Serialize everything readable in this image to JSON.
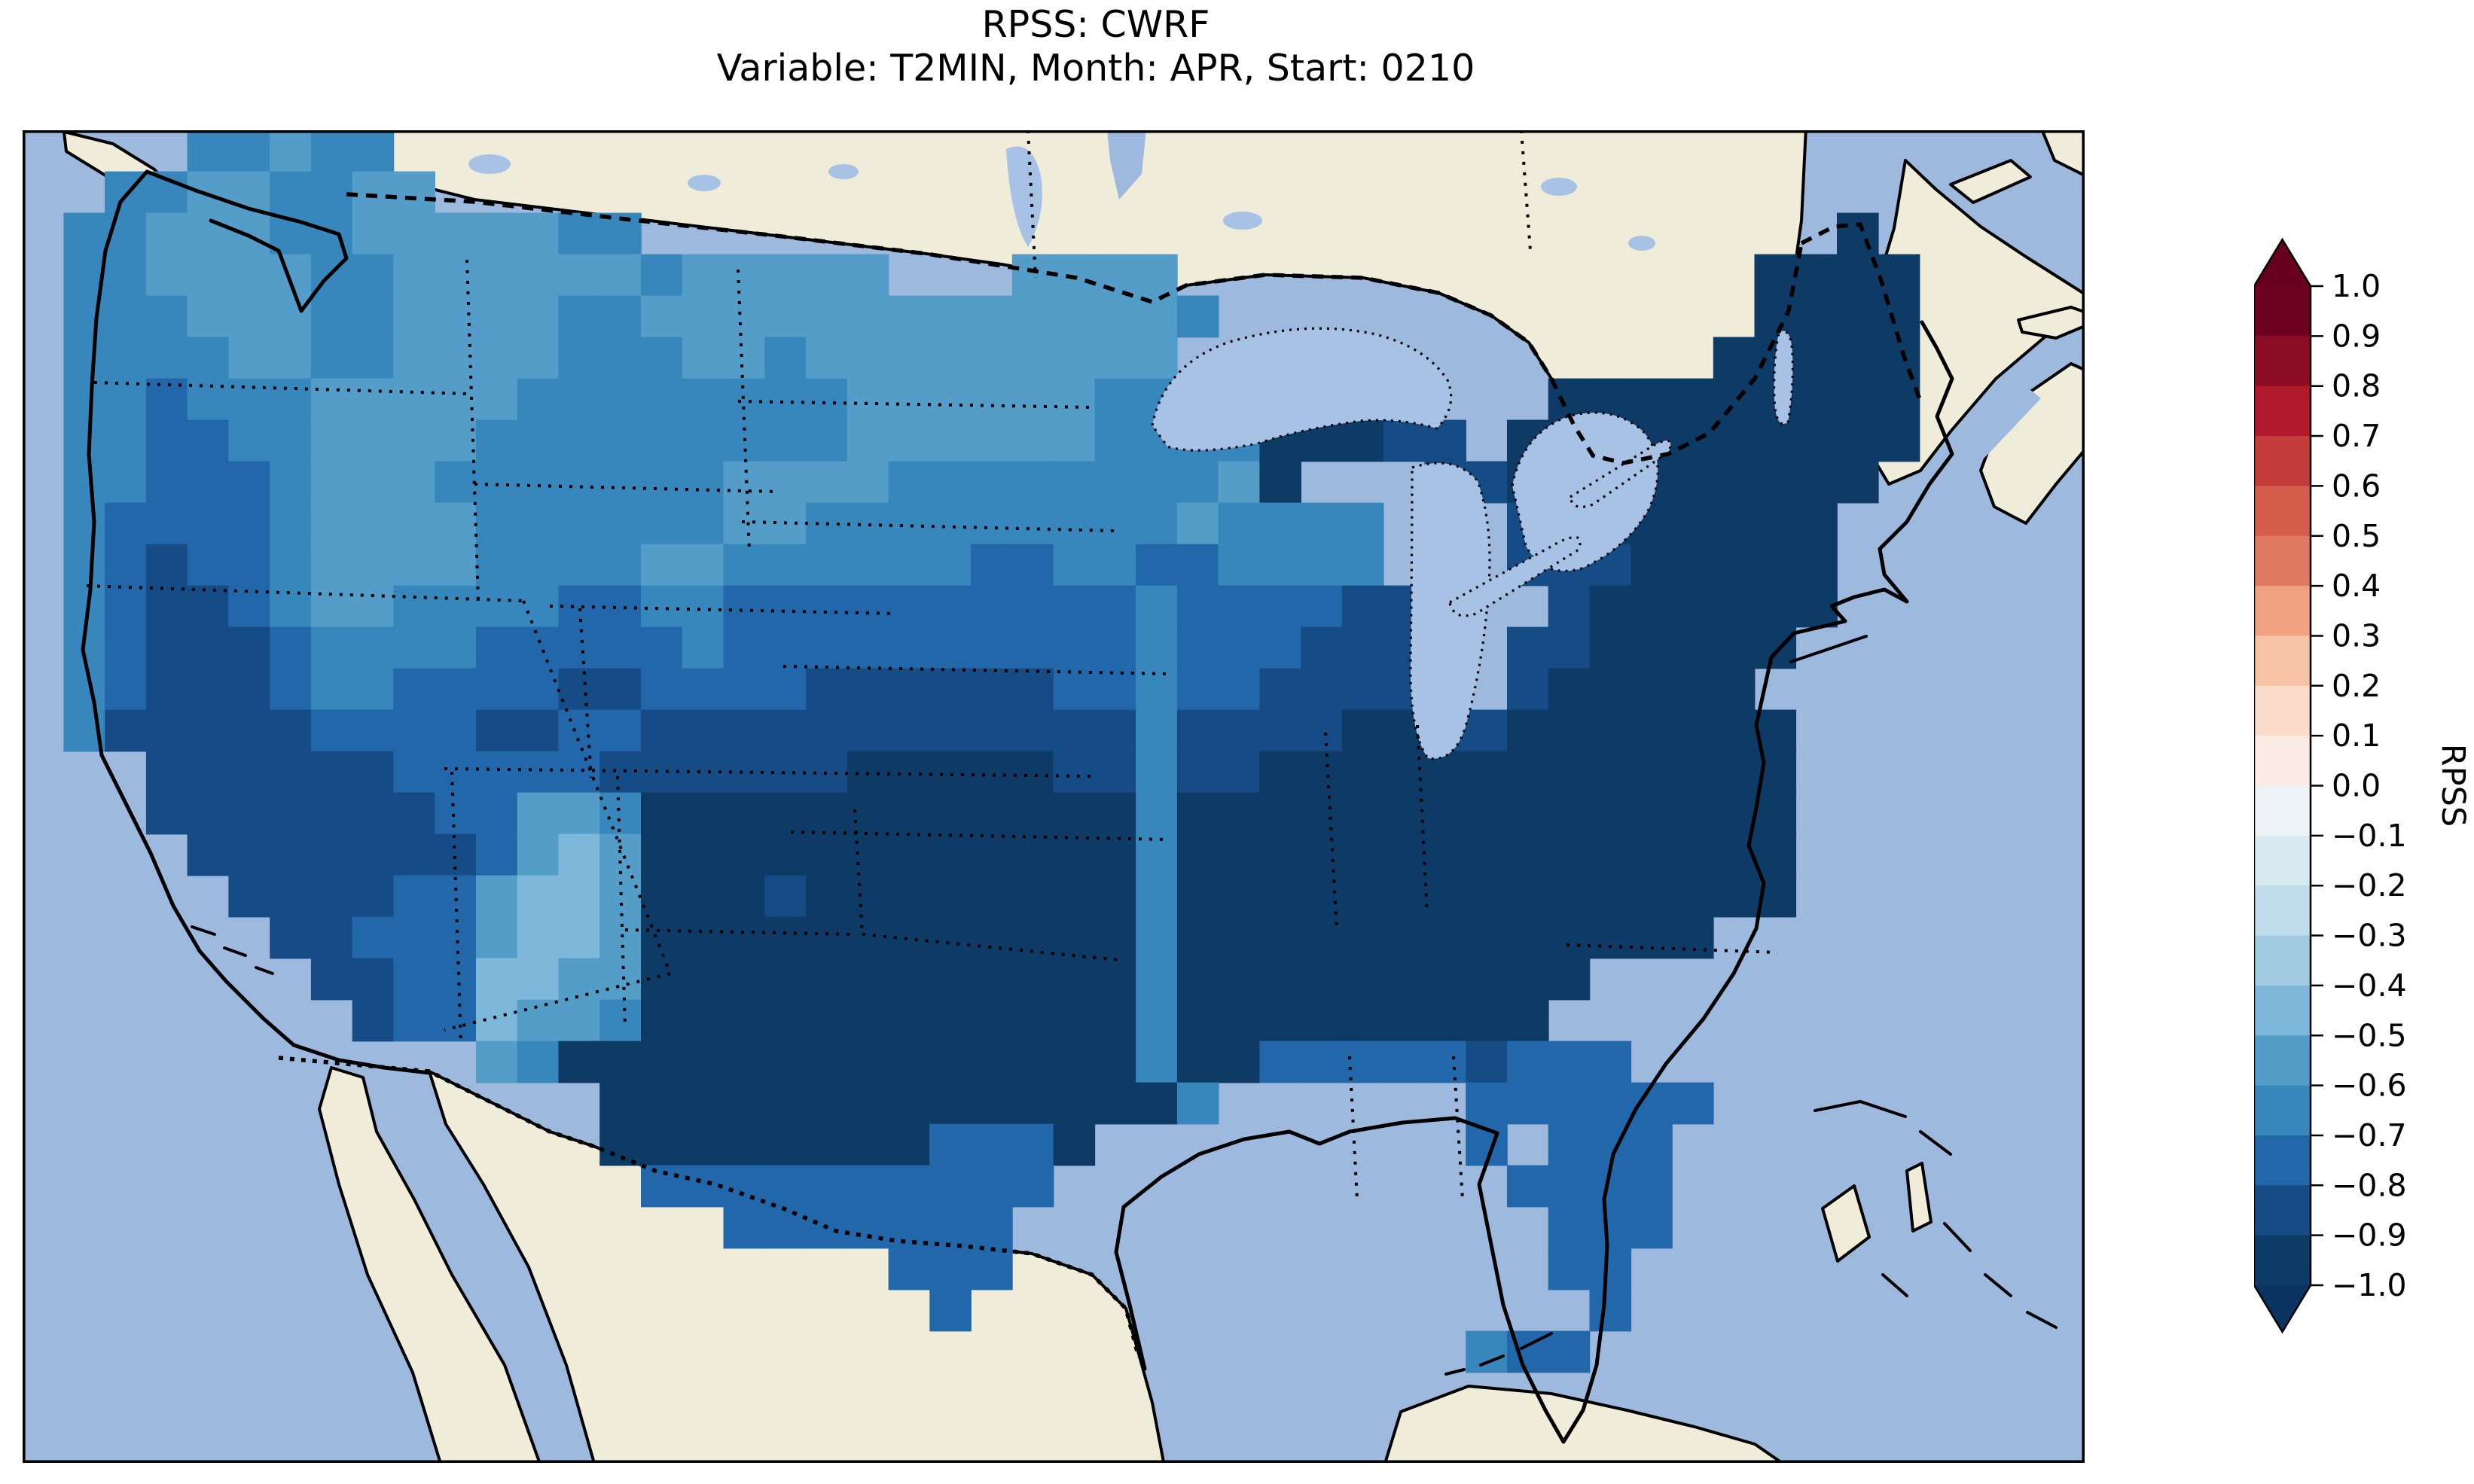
{
  "title": {
    "line1": "RPSS: CWRF",
    "line2": "Variable: T2MIN, Month: APR, Start: 0210"
  },
  "colorbar": {
    "label": "RPSS",
    "ticks": [
      "1.0",
      "0.9",
      "0.8",
      "0.7",
      "0.6",
      "0.5",
      "0.4",
      "0.3",
      "0.2",
      "0.1",
      "0.0",
      "−0.1",
      "−0.2",
      "−0.3",
      "−0.4",
      "−0.5",
      "−0.6",
      "−0.7",
      "−0.8",
      "−0.9",
      "−1.0"
    ],
    "segments": [
      {
        "range": "0.9 to 1.0",
        "color": "#6d0120"
      },
      {
        "range": "0.8 to 0.9",
        "color": "#8e0d26"
      },
      {
        "range": "0.7 to 0.8",
        "color": "#b2182b"
      },
      {
        "range": "0.6 to 0.7",
        "color": "#c43c3c"
      },
      {
        "range": "0.5 to 0.6",
        "color": "#d45d4b"
      },
      {
        "range": "0.4 to 0.5",
        "color": "#e07961"
      },
      {
        "range": "0.3 to 0.4",
        "color": "#f0a17f"
      },
      {
        "range": "0.2 to 0.3",
        "color": "#f7c3a6"
      },
      {
        "range": "0.1 to 0.2",
        "color": "#fbdccb"
      },
      {
        "range": "0.0 to 0.1",
        "color": "#faece4"
      },
      {
        "range": "-0.1 to 0.0",
        "color": "#ecf2f5"
      },
      {
        "range": "-0.2 to -0.1",
        "color": "#d9e9f1"
      },
      {
        "range": "-0.3 to -0.2",
        "color": "#c1dcea"
      },
      {
        "range": "-0.4 to -0.3",
        "color": "#a2cbe2"
      },
      {
        "range": "-0.5 to -0.4",
        "color": "#7db8da"
      },
      {
        "range": "-0.6 to -0.5",
        "color": "#539dc8"
      },
      {
        "range": "-0.7 to -0.6",
        "color": "#3787bc"
      },
      {
        "range": "-0.8 to -0.7",
        "color": "#2367ab"
      },
      {
        "range": "-0.9 to -0.8",
        "color": "#164c86"
      },
      {
        "range": "-1.0 to -0.9",
        "color": "#0e3a66"
      }
    ],
    "over_arrow_color": "#67001f",
    "under_arrow_color": "#0a3360"
  },
  "map_colors": {
    "ocean": "#9db9de",
    "land": "#efedda",
    "lake": "#a8c2e6"
  },
  "chart_data": {
    "type": "heatmap",
    "title": "RPSS: CWRF",
    "subtitle": "Variable: T2MIN, Month: APR, Start: 0210",
    "metric": "RPSS",
    "model": "CWRF",
    "variable": "T2MIN",
    "month": "APR",
    "start": "0210",
    "colorbar_range": [
      -1.0,
      1.0
    ],
    "colorbar_step": 0.1,
    "legend_position": "right",
    "observed_field_note": "All CONUS values negative, roughly -0.4 to -1.0; darkest (approx -1.0) over East, Southeast, Texas and New England; lightest (approx -0.4 to -0.6) over northern Rockies, Dakotas, Minnesota and southern New Mexico",
    "value_bins": {
      "a": "-0.5 to -0.4",
      "b": "-0.6 to -0.5",
      "c": "-0.7 to -0.6",
      "d": "-0.8 to -0.7",
      "e": "-0.9 to -0.8",
      "f": "-1.0 to -0.9"
    },
    "bin_colors": {
      "a": "#7db8da",
      "b": "#539dc8",
      "c": "#3787bc",
      "d": "#2367ab",
      "e": "#164c86",
      "f": "#0e3a66"
    },
    "grid_rows": [
      "....ccbcc.........................................",
      "..ccbbccbb........................................",
      ".ccbbbccbbbbbcc.............................f.....",
      ".ccbbbbccbbbbbbcbbbbb...bbbb..............ffff....",
      ".cccbbbccbbbbccbbbbbbbbbbbbbc.............ffff....",
      ".ccccbbccbbbbcccbbcbbbbbbbbb.............fffff....",
      ".ccdcccbbbbbccccccccbbbbbbcc.fffff...fffffffff....",
      ".ccddccbbbbcccccccccbbbbbbccccfffee.ffffffffff....",
      ".ccdddcbbbcccccccbbbbccccccccbf...eefffffffff.....",
      ".cddddcbbbbccccccbbcccccccccbcccc...efffffff......",
      ".cdeddcbbbbccccbbccccccddccddcccc...eeefffff......",
      ".cdeedcbbccccddccddddddddddcddddee...effffff......",
      ".cdeeedccccdddddcddddddddddcdddeee..eefffff.......",
      ".cdeeedccddddeeddddeeeeeeddcddeeee..efffff........",
      ".ceeeeeddddeeddeeeeeeeeeeeeceeeeffeefffffff.......",
      "...eeeeeedddddeeeeeefffffeeceefffffffffffff.......",
      "...eeeeeeeddbbcffffffffffffcfffffffffffffff.......",
      "....eeeeeeedbabffffffffffffcfffffffffffffff.......",
      ".....eeeeddbaabfffeffffffffcfffffffffffffff.......",
      "......eedddbaabffffffffffffcfffffffffffff.........",
      ".......eeddaabbffffffffffffcffffffffff............",
      "........eddabbcffffffffffffcfffffffff.............",
      "...........bcffffffffffffffcffdddddeddd...........",
      "..............ffffffffffffffc......dddddd.........",
      "..............ffffffffdddf.........d.ddd..........",
      "...............dddddddddd...........dddd..........",
      ".................ddddddd.............ddd..........",
      ".....................ddd.............dd...........",
      "......................d...............d...........",
      "...................................cdd............",
      "..................................................",
      ".................................................."
    ]
  }
}
